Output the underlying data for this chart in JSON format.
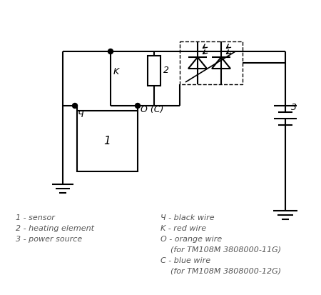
{
  "bg_color": "#ffffff",
  "line_color": "#000000",
  "line_width": 1.5,
  "legend_left": [
    "1 - sensor",
    "2 - heating element",
    "3 - power source"
  ],
  "legend_right": [
    "Ч - black wire",
    "K - red wire",
    "O - orange wire",
    "    (for TM108M 3808000-11G)",
    "C - blue wire",
    "    (for TM108M 3808000-12G)"
  ],
  "label_1": "1",
  "label_2": "2",
  "label_3": "3",
  "label_K": "K",
  "label_Ch": "Ч",
  "label_OC": "O (C)"
}
